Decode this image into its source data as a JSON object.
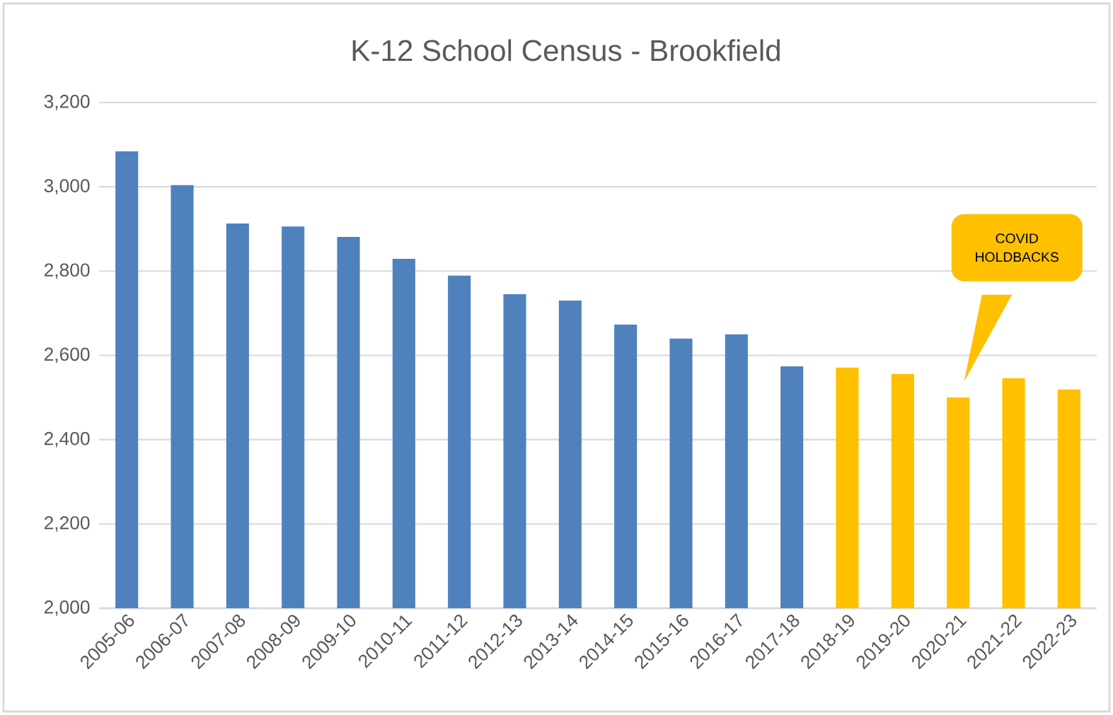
{
  "chart_data": {
    "type": "bar",
    "title": "K-12 School Census - Brookfield",
    "categories": [
      "2005-06",
      "2006-07",
      "2007-08",
      "2008-09",
      "2009-10",
      "2010-11",
      "2011-12",
      "2012-13",
      "2013-14",
      "2014-15",
      "2015-16",
      "2016-17",
      "2017-18",
      "2018-19",
      "2019-20",
      "2020-21",
      "2021-22",
      "2022-23"
    ],
    "values": [
      3084,
      3004,
      2913,
      2906,
      2881,
      2829,
      2789,
      2745,
      2730,
      2673,
      2640,
      2650,
      2574,
      2571,
      2556,
      2500,
      2546,
      2519
    ],
    "colors": [
      "#4f81bd",
      "#4f81bd",
      "#4f81bd",
      "#4f81bd",
      "#4f81bd",
      "#4f81bd",
      "#4f81bd",
      "#4f81bd",
      "#4f81bd",
      "#4f81bd",
      "#4f81bd",
      "#4f81bd",
      "#4f81bd",
      "#ffc000",
      "#ffc000",
      "#ffc000",
      "#ffc000",
      "#ffc000"
    ],
    "ylim": [
      2000,
      3200
    ],
    "yticks": [
      {
        "value": 2000,
        "label": "2,000"
      },
      {
        "value": 2200,
        "label": "2,200"
      },
      {
        "value": 2400,
        "label": "2,400"
      },
      {
        "value": 2600,
        "label": "2,600"
      },
      {
        "value": 2800,
        "label": "2,800"
      },
      {
        "value": 3000,
        "label": "3,000"
      },
      {
        "value": 3200,
        "label": "3,200"
      }
    ],
    "grid": "y",
    "annotations": [
      "COVID HOLDBACKS"
    ]
  }
}
